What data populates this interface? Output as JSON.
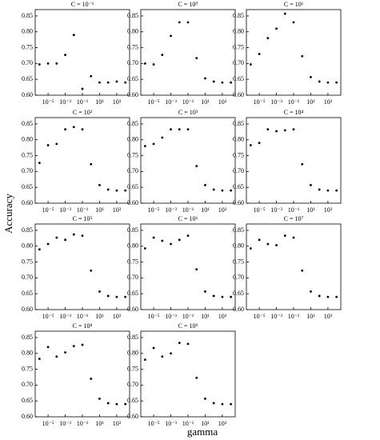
{
  "y_label": "Accuracy",
  "x_label": "gamma",
  "chart_data": [
    {
      "type": "scatter",
      "title": "C = 10⁻¹",
      "color": "#000000",
      "log_x": true,
      "x": [
        1e-06,
        1e-05,
        0.0001,
        0.001,
        0.01,
        0.1,
        1,
        10,
        100,
        1000,
        10000
      ],
      "values": [
        0.697,
        0.7,
        0.7,
        0.727,
        0.79,
        0.62,
        0.66,
        0.64,
        0.64,
        0.643,
        0.64
      ],
      "xlim": [
        3.16e-07,
        31623
      ],
      "ylim": [
        0.6,
        0.87
      ],
      "xticks": [
        {
          "value": 1e-05,
          "label": "10⁻⁵"
        },
        {
          "value": 0.001,
          "label": "10⁻³"
        },
        {
          "value": 0.1,
          "label": "10⁻¹"
        },
        {
          "value": 10,
          "label": "10¹"
        },
        {
          "value": 1000,
          "label": "10³"
        }
      ],
      "yticks": [
        {
          "value": 0.6,
          "label": "0.60"
        },
        0.65,
        {
          "value": 0.7,
          "label": "0.70"
        },
        0.75,
        {
          "value": 0.8,
          "label": "0.80"
        },
        0.85
      ]
    },
    {
      "type": "scatter",
      "title": "C = 10⁰",
      "color": "#000000",
      "log_x": true,
      "x": [
        1e-06,
        1e-05,
        0.0001,
        0.001,
        0.01,
        0.1,
        1,
        10,
        100,
        1000,
        10000
      ],
      "values": [
        0.7,
        0.697,
        0.727,
        0.787,
        0.83,
        0.83,
        0.717,
        0.653,
        0.643,
        0.64,
        0.64
      ],
      "xlim": [
        3.16e-07,
        31623
      ],
      "ylim": [
        0.6,
        0.87
      ],
      "xticks": [
        {
          "value": 1e-05,
          "label": "10⁻⁵"
        },
        {
          "value": 0.001,
          "label": "10⁻³"
        },
        {
          "value": 0.1,
          "label": "10⁻¹"
        },
        {
          "value": 10,
          "label": "10¹"
        },
        {
          "value": 1000,
          "label": "10³"
        }
      ],
      "yticks": [
        {
          "value": 0.6,
          "label": "0.60"
        },
        0.65,
        {
          "value": 0.7,
          "label": "0.70"
        },
        0.75,
        {
          "value": 0.8,
          "label": "0.80"
        },
        0.85
      ]
    },
    {
      "type": "scatter",
      "title": "C = 10¹",
      "color": "#000000",
      "log_x": true,
      "x": [
        1e-06,
        1e-05,
        0.0001,
        0.001,
        0.01,
        0.1,
        1,
        10,
        100,
        1000,
        10000
      ],
      "values": [
        0.697,
        0.73,
        0.78,
        0.81,
        0.857,
        0.83,
        0.723,
        0.657,
        0.643,
        0.64,
        0.64
      ],
      "xlim": [
        3.16e-07,
        31623
      ],
      "ylim": [
        0.6,
        0.87
      ],
      "xticks": [
        {
          "value": 1e-05,
          "label": "10⁻⁵"
        },
        {
          "value": 0.001,
          "label": "10⁻³"
        },
        {
          "value": 0.1,
          "label": "10⁻¹"
        },
        {
          "value": 10,
          "label": "10¹"
        },
        {
          "value": 1000,
          "label": "10³"
        }
      ],
      "yticks": [
        {
          "value": 0.6,
          "label": "0.60"
        },
        0.65,
        {
          "value": 0.7,
          "label": "0.70"
        },
        0.75,
        {
          "value": 0.8,
          "label": "0.80"
        },
        0.85
      ]
    },
    {
      "type": "scatter",
      "title": "C = 10²",
      "color": "#000000",
      "log_x": true,
      "x": [
        1e-06,
        1e-05,
        0.0001,
        0.001,
        0.01,
        0.1,
        1,
        10,
        100,
        1000,
        10000
      ],
      "values": [
        0.727,
        0.783,
        0.787,
        0.833,
        0.84,
        0.833,
        0.723,
        0.657,
        0.643,
        0.64,
        0.64
      ],
      "xlim": [
        3.16e-07,
        31623
      ],
      "ylim": [
        0.6,
        0.87
      ],
      "xticks": [
        {
          "value": 1e-05,
          "label": "10⁻⁵"
        },
        {
          "value": 0.001,
          "label": "10⁻³"
        },
        {
          "value": 0.1,
          "label": "10⁻¹"
        },
        {
          "value": 10,
          "label": "10¹"
        },
        {
          "value": 1000,
          "label": "10³"
        }
      ],
      "yticks": [
        {
          "value": 0.6,
          "label": "0.60"
        },
        0.65,
        {
          "value": 0.7,
          "label": "0.70"
        },
        0.75,
        {
          "value": 0.8,
          "label": "0.80"
        },
        0.85
      ]
    },
    {
      "type": "scatter",
      "title": "C = 10³",
      "color": "#000000",
      "log_x": true,
      "x": [
        1e-06,
        1e-05,
        0.0001,
        0.001,
        0.01,
        0.1,
        1,
        10,
        100,
        1000,
        10000
      ],
      "values": [
        0.78,
        0.787,
        0.807,
        0.833,
        0.833,
        0.833,
        0.717,
        0.657,
        0.643,
        0.64,
        0.64
      ],
      "xlim": [
        3.16e-07,
        31623
      ],
      "ylim": [
        0.6,
        0.87
      ],
      "xticks": [
        {
          "value": 1e-05,
          "label": "10⁻⁵"
        },
        {
          "value": 0.001,
          "label": "10⁻³"
        },
        {
          "value": 0.1,
          "label": "10⁻¹"
        },
        {
          "value": 10,
          "label": "10¹"
        },
        {
          "value": 1000,
          "label": "10³"
        }
      ],
      "yticks": [
        {
          "value": 0.6,
          "label": "0.60"
        },
        0.65,
        {
          "value": 0.7,
          "label": "0.70"
        },
        0.75,
        {
          "value": 0.8,
          "label": "0.80"
        },
        0.85
      ]
    },
    {
      "type": "scatter",
      "title": "C = 10⁴",
      "color": "#000000",
      "log_x": true,
      "x": [
        1e-06,
        1e-05,
        0.0001,
        0.001,
        0.01,
        0.1,
        1,
        10,
        100,
        1000,
        10000
      ],
      "values": [
        0.783,
        0.79,
        0.833,
        0.827,
        0.83,
        0.833,
        0.723,
        0.657,
        0.643,
        0.64,
        0.64
      ],
      "xlim": [
        3.16e-07,
        31623
      ],
      "ylim": [
        0.6,
        0.87
      ],
      "xticks": [
        {
          "value": 1e-05,
          "label": "10⁻⁵"
        },
        {
          "value": 0.001,
          "label": "10⁻³"
        },
        {
          "value": 0.1,
          "label": "10⁻¹"
        },
        {
          "value": 10,
          "label": "10¹"
        },
        {
          "value": 1000,
          "label": "10³"
        }
      ],
      "yticks": [
        {
          "value": 0.6,
          "label": "0.60"
        },
        0.65,
        {
          "value": 0.7,
          "label": "0.70"
        },
        0.75,
        {
          "value": 0.8,
          "label": "0.80"
        },
        0.85
      ]
    },
    {
      "type": "scatter",
      "title": "C = 10⁵",
      "color": "#000000",
      "log_x": true,
      "x": [
        1e-06,
        1e-05,
        0.0001,
        0.001,
        0.01,
        0.1,
        1,
        10,
        100,
        1000,
        10000
      ],
      "values": [
        0.79,
        0.807,
        0.827,
        0.82,
        0.837,
        0.833,
        0.723,
        0.657,
        0.643,
        0.64,
        0.64
      ],
      "xlim": [
        3.16e-07,
        31623
      ],
      "ylim": [
        0.6,
        0.87
      ],
      "xticks": [
        {
          "value": 1e-05,
          "label": "10⁻⁵"
        },
        {
          "value": 0.001,
          "label": "10⁻³"
        },
        {
          "value": 0.1,
          "label": "10⁻¹"
        },
        {
          "value": 10,
          "label": "10¹"
        },
        {
          "value": 1000,
          "label": "10³"
        }
      ],
      "yticks": [
        {
          "value": 0.6,
          "label": "0.60"
        },
        0.65,
        {
          "value": 0.7,
          "label": "0.70"
        },
        0.75,
        {
          "value": 0.8,
          "label": "0.80"
        },
        0.85
      ]
    },
    {
      "type": "scatter",
      "title": "C = 10⁶",
      "color": "#000000",
      "log_x": true,
      "x": [
        1e-06,
        1e-05,
        0.0001,
        0.001,
        0.01,
        0.1,
        1,
        10,
        100,
        1000,
        10000
      ],
      "values": [
        0.793,
        0.827,
        0.817,
        0.807,
        0.82,
        0.833,
        0.727,
        0.657,
        0.643,
        0.64,
        0.64
      ],
      "xlim": [
        3.16e-07,
        31623
      ],
      "ylim": [
        0.6,
        0.87
      ],
      "xticks": [
        {
          "value": 1e-05,
          "label": "10⁻⁵"
        },
        {
          "value": 0.001,
          "label": "10⁻³"
        },
        {
          "value": 0.1,
          "label": "10⁻¹"
        },
        {
          "value": 10,
          "label": "10¹"
        },
        {
          "value": 1000,
          "label": "10³"
        }
      ],
      "yticks": [
        {
          "value": 0.6,
          "label": "0.60"
        },
        0.65,
        {
          "value": 0.7,
          "label": "0.70"
        },
        0.75,
        {
          "value": 0.8,
          "label": "0.80"
        },
        0.85
      ]
    },
    {
      "type": "scatter",
      "title": "C = 10⁷",
      "color": "#000000",
      "log_x": true,
      "x": [
        1e-06,
        1e-05,
        0.0001,
        0.001,
        0.01,
        0.1,
        1,
        10,
        100,
        1000,
        10000
      ],
      "values": [
        0.793,
        0.82,
        0.807,
        0.803,
        0.833,
        0.827,
        0.723,
        0.657,
        0.643,
        0.64,
        0.64
      ],
      "xlim": [
        3.16e-07,
        31623
      ],
      "ylim": [
        0.6,
        0.87
      ],
      "xticks": [
        {
          "value": 1e-05,
          "label": "10⁻⁵"
        },
        {
          "value": 0.001,
          "label": "10⁻³"
        },
        {
          "value": 0.1,
          "label": "10⁻¹"
        },
        {
          "value": 10,
          "label": "10¹"
        },
        {
          "value": 1000,
          "label": "10³"
        }
      ],
      "yticks": [
        {
          "value": 0.6,
          "label": "0.60"
        },
        0.65,
        {
          "value": 0.7,
          "label": "0.70"
        },
        0.75,
        {
          "value": 0.8,
          "label": "0.80"
        },
        0.85
      ]
    },
    {
      "type": "scatter",
      "title": "C = 10⁸",
      "color": "#000000",
      "log_x": true,
      "x": [
        1e-06,
        1e-05,
        0.0001,
        0.001,
        0.01,
        0.1,
        1,
        10,
        100,
        1000,
        10000
      ],
      "values": [
        0.783,
        0.82,
        0.79,
        0.803,
        0.823,
        0.827,
        0.72,
        0.657,
        0.643,
        0.64,
        0.64
      ],
      "xlim": [
        3.16e-07,
        31623
      ],
      "ylim": [
        0.6,
        0.87
      ],
      "xticks": [
        {
          "value": 1e-05,
          "label": "10⁻⁵"
        },
        {
          "value": 0.001,
          "label": "10⁻³"
        },
        {
          "value": 0.1,
          "label": "10⁻¹"
        },
        {
          "value": 10,
          "label": "10¹"
        },
        {
          "value": 1000,
          "label": "10³"
        }
      ],
      "yticks": [
        {
          "value": 0.6,
          "label": "0.60"
        },
        0.65,
        {
          "value": 0.7,
          "label": "0.70"
        },
        0.75,
        {
          "value": 0.8,
          "label": "0.80"
        },
        0.85
      ]
    },
    {
      "type": "scatter",
      "title": "C = 10⁹",
      "color": "#000000",
      "log_x": true,
      "x": [
        1e-06,
        1e-05,
        0.0001,
        0.001,
        0.01,
        0.1,
        1,
        10,
        100,
        1000,
        10000
      ],
      "values": [
        0.78,
        0.817,
        0.79,
        0.8,
        0.833,
        0.83,
        0.723,
        0.657,
        0.643,
        0.64,
        0.64
      ],
      "xlim": [
        3.16e-07,
        31623
      ],
      "ylim": [
        0.6,
        0.87
      ],
      "xticks": [
        {
          "value": 1e-05,
          "label": "10⁻⁵"
        },
        {
          "value": 0.001,
          "label": "10⁻³"
        },
        {
          "value": 0.1,
          "label": "10⁻¹"
        },
        {
          "value": 10,
          "label": "10¹"
        },
        {
          "value": 1000,
          "label": "10³"
        }
      ],
      "yticks": [
        {
          "value": 0.6,
          "label": "0.60"
        },
        0.65,
        {
          "value": 0.7,
          "label": "0.70"
        },
        0.75,
        {
          "value": 0.8,
          "label": "0.80"
        },
        0.85
      ]
    }
  ]
}
